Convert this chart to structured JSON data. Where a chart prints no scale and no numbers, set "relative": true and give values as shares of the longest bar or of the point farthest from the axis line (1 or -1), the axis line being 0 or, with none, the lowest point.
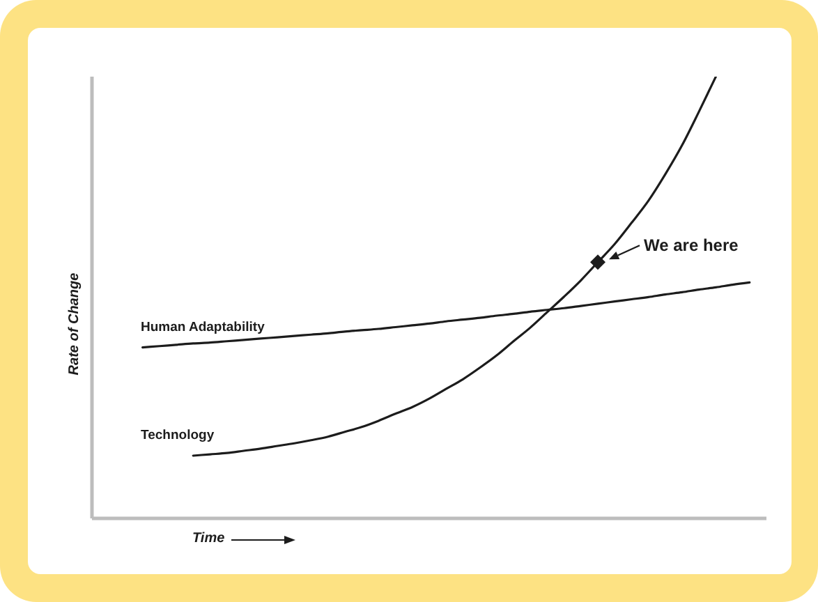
{
  "chart_data": {
    "type": "line",
    "relative": true,
    "xlabel": "Time",
    "ylabel": "Rate of Change",
    "marker": "none",
    "annotations": [
      "We are here"
    ],
    "categories": [
      null,
      null,
      null,
      null,
      null,
      null,
      null,
      null,
      null,
      null,
      null,
      null,
      null,
      null,
      null,
      null,
      null,
      null,
      null,
      null,
      null,
      null,
      null,
      null,
      null,
      null,
      null,
      null,
      null,
      null,
      null,
      null,
      null,
      null,
      null,
      null,
      null,
      null,
      null,
      null,
      null
    ],
    "series": [
      {
        "name": "Human Adaptability",
        "color": "#1c1c1c",
        "values": [
          null,
          null,
          null,
          0.387,
          0.39,
          0.393,
          0.396,
          0.398,
          0.401,
          0.404,
          0.407,
          0.41,
          0.413,
          0.416,
          0.419,
          0.423,
          0.426,
          0.429,
          0.433,
          0.437,
          0.441,
          0.446,
          0.45,
          0.454,
          0.459,
          0.463,
          0.468,
          0.472,
          0.476,
          0.481,
          0.486,
          0.491,
          0.496,
          0.501,
          0.507,
          0.512,
          0.518,
          0.523,
          0.529,
          0.534,
          null
        ]
      },
      {
        "name": "Technology",
        "color": "#1c1c1c",
        "values": [
          null,
          null,
          null,
          null,
          null,
          null,
          0.142,
          0.145,
          0.148,
          0.153,
          0.158,
          0.164,
          0.17,
          0.177,
          0.185,
          0.196,
          0.207,
          0.221,
          0.237,
          0.252,
          0.271,
          0.293,
          0.315,
          0.341,
          0.369,
          0.401,
          0.432,
          0.467,
          0.502,
          0.539,
          0.58,
          0.621,
          0.669,
          0.719,
          0.779,
          0.845,
          0.921,
          1,
          null,
          null,
          null
        ]
      },
      {
        "type": "line",
        "marker": "diamond",
        "color": "#1c1c1c",
        "values": [
          null,
          null,
          null,
          null,
          null,
          null,
          null,
          null,
          null,
          null,
          null,
          null,
          null,
          null,
          null,
          null,
          null,
          null,
          null,
          null,
          null,
          null,
          null,
          null,
          null,
          null,
          null,
          null,
          null,
          null,
          0.58,
          null,
          null,
          null,
          null,
          null,
          null,
          null,
          null,
          null,
          null
        ]
      }
    ]
  }
}
